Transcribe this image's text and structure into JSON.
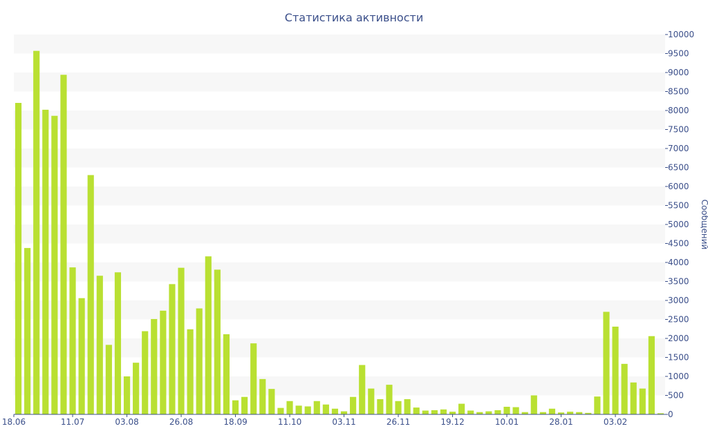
{
  "chart_data": {
    "type": "bar",
    "title": "Статистика активности",
    "xlabel": "",
    "ylabel": "Сообщений",
    "ylim": [
      0,
      10000
    ],
    "y_ticks": [
      0,
      500,
      1000,
      1500,
      2000,
      2500,
      3000,
      3500,
      4000,
      4500,
      5000,
      5500,
      6000,
      6500,
      7000,
      7500,
      8000,
      8500,
      9000,
      9500,
      10000
    ],
    "x_tick_labels": [
      "18.06",
      "11.07",
      "03.08",
      "26.08",
      "18.09",
      "11.10",
      "03.11",
      "26.11",
      "19.12",
      "10.01",
      "28.01",
      "03.02"
    ],
    "x_tick_bar_index": [
      0,
      6,
      12,
      18,
      24,
      30,
      36,
      42,
      48,
      54,
      60,
      66
    ],
    "values": [
      8200,
      4380,
      9570,
      8020,
      7860,
      8940,
      3870,
      3060,
      6300,
      3650,
      1830,
      3740,
      1000,
      1360,
      2190,
      2510,
      2730,
      3430,
      3860,
      2240,
      2790,
      4160,
      3810,
      2110,
      370,
      460,
      1870,
      930,
      670,
      170,
      350,
      230,
      210,
      350,
      260,
      150,
      80,
      460,
      1300,
      680,
      400,
      780,
      350,
      400,
      180,
      100,
      110,
      130,
      70,
      280,
      100,
      60,
      80,
      110,
      200,
      190,
      60,
      500,
      60,
      150,
      50,
      70,
      60,
      40,
      470,
      2700,
      2310,
      1330,
      840,
      680,
      2060,
      30
    ],
    "grid": "horizontal bands",
    "legend": "none",
    "colors": {
      "bar": "#b9e032",
      "band": "#f7f7f7",
      "text": "#3b4f8a",
      "axis": "#3b4f8a"
    }
  }
}
